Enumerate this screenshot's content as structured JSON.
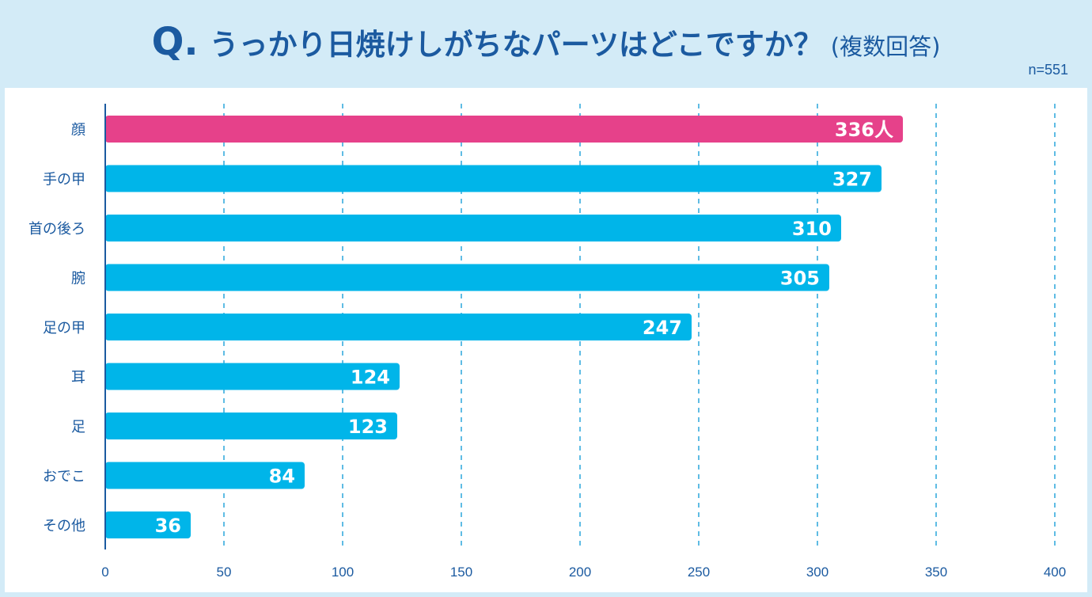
{
  "header": {
    "q_mark": "Q.",
    "question": "うっかり日焼けしがちなパーツはどこですか？",
    "note": "(複数回答)",
    "sample": "n=551"
  },
  "colors": {
    "highlight": "#e6418a",
    "bar": "#00b5e9",
    "axis": "#1b5aa0",
    "grid": "#2aa5dc"
  },
  "chart_data": {
    "type": "bar",
    "orientation": "horizontal",
    "title": "うっかり日焼けしがちなパーツはどこですか？ (複数回答)",
    "categories": [
      "顔",
      "手の甲",
      "首の後ろ",
      "腕",
      "足の甲",
      "耳",
      "足",
      "おでこ",
      "その他"
    ],
    "values": [
      336,
      327,
      310,
      305,
      247,
      124,
      123,
      84,
      36
    ],
    "value_labels": [
      "336人",
      "327",
      "310",
      "305",
      "247",
      "124",
      "123",
      "84",
      "36"
    ],
    "highlight_index": 0,
    "xlim": [
      0,
      400
    ],
    "xticks": [
      0,
      50,
      100,
      150,
      200,
      250,
      300,
      350,
      400
    ],
    "grid": "vertical-dashed",
    "xlabel": "",
    "ylabel": ""
  }
}
